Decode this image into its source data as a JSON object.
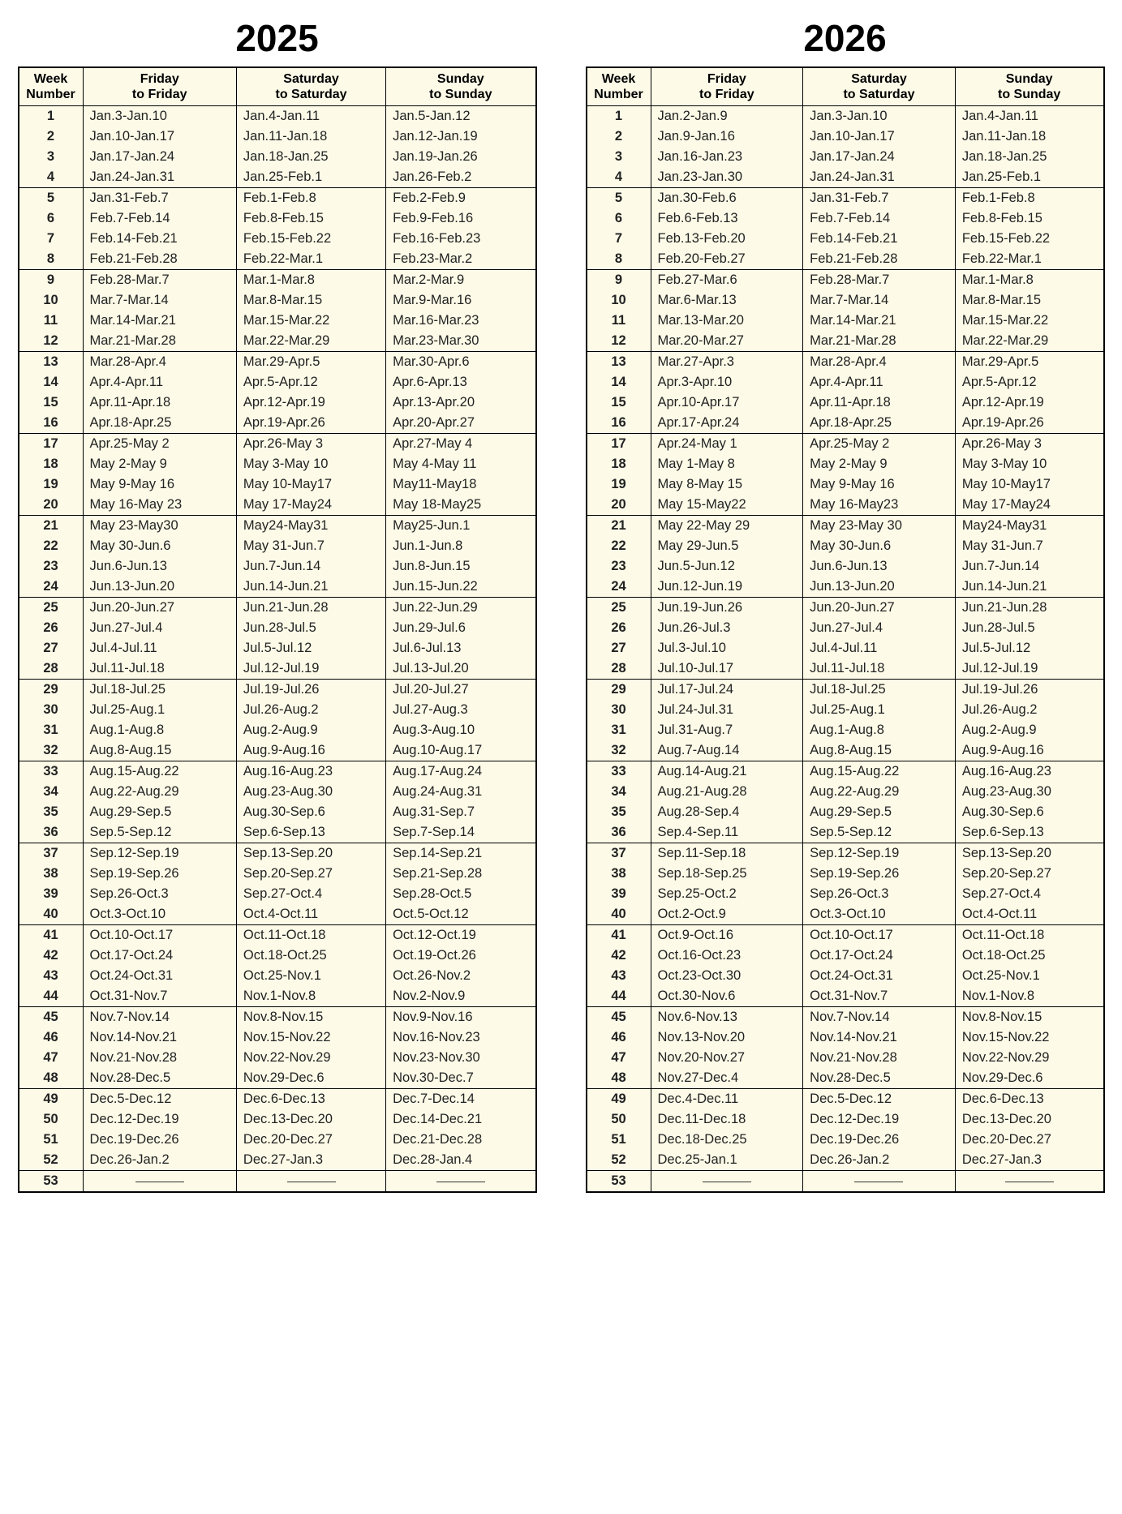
{
  "colors": {
    "page_bg": "#ffffff",
    "cell_bg": "#fdfbe8",
    "border": "#000000",
    "text": "#222222"
  },
  "typography": {
    "title_fontsize": 46,
    "header_fontsize": 16,
    "cell_fontsize": 16.5,
    "font_family": "Arial"
  },
  "layout": {
    "group_size": 4,
    "total_rows": 53
  },
  "headers": {
    "week": "Week\nNumber",
    "fri": "Friday\nto Friday",
    "sat": "Saturday\nto Saturday",
    "sun": "Sunday\nto Sunday"
  },
  "tables": [
    {
      "year": "2025",
      "rows": [
        {
          "w": "1",
          "f": "Jan.3-Jan.10",
          "sa": "Jan.4-Jan.11",
          "su": "Jan.5-Jan.12"
        },
        {
          "w": "2",
          "f": "Jan.10-Jan.17",
          "sa": "Jan.11-Jan.18",
          "su": "Jan.12-Jan.19"
        },
        {
          "w": "3",
          "f": "Jan.17-Jan.24",
          "sa": "Jan.18-Jan.25",
          "su": "Jan.19-Jan.26"
        },
        {
          "w": "4",
          "f": "Jan.24-Jan.31",
          "sa": "Jan.25-Feb.1",
          "su": "Jan.26-Feb.2"
        },
        {
          "w": "5",
          "f": "Jan.31-Feb.7",
          "sa": "Feb.1-Feb.8",
          "su": "Feb.2-Feb.9"
        },
        {
          "w": "6",
          "f": "Feb.7-Feb.14",
          "sa": "Feb.8-Feb.15",
          "su": "Feb.9-Feb.16"
        },
        {
          "w": "7",
          "f": "Feb.14-Feb.21",
          "sa": "Feb.15-Feb.22",
          "su": "Feb.16-Feb.23"
        },
        {
          "w": "8",
          "f": "Feb.21-Feb.28",
          "sa": "Feb.22-Mar.1",
          "su": "Feb.23-Mar.2"
        },
        {
          "w": "9",
          "f": "Feb.28-Mar.7",
          "sa": "Mar.1-Mar.8",
          "su": "Mar.2-Mar.9"
        },
        {
          "w": "10",
          "f": "Mar.7-Mar.14",
          "sa": "Mar.8-Mar.15",
          "su": "Mar.9-Mar.16"
        },
        {
          "w": "11",
          "f": "Mar.14-Mar.21",
          "sa": "Mar.15-Mar.22",
          "su": "Mar.16-Mar.23"
        },
        {
          "w": "12",
          "f": "Mar.21-Mar.28",
          "sa": "Mar.22-Mar.29",
          "su": "Mar.23-Mar.30"
        },
        {
          "w": "13",
          "f": "Mar.28-Apr.4",
          "sa": "Mar.29-Apr.5",
          "su": "Mar.30-Apr.6"
        },
        {
          "w": "14",
          "f": "Apr.4-Apr.11",
          "sa": "Apr.5-Apr.12",
          "su": "Apr.6-Apr.13"
        },
        {
          "w": "15",
          "f": "Apr.11-Apr.18",
          "sa": "Apr.12-Apr.19",
          "su": "Apr.13-Apr.20"
        },
        {
          "w": "16",
          "f": "Apr.18-Apr.25",
          "sa": "Apr.19-Apr.26",
          "su": "Apr.20-Apr.27"
        },
        {
          "w": "17",
          "f": "Apr.25-May 2",
          "sa": "Apr.26-May 3",
          "su": "Apr.27-May 4"
        },
        {
          "w": "18",
          "f": "May 2-May 9",
          "sa": "May 3-May 10",
          "su": "May 4-May 11"
        },
        {
          "w": "19",
          "f": "May 9-May 16",
          "sa": "May 10-May17",
          "su": "May11-May18"
        },
        {
          "w": "20",
          "f": "May 16-May 23",
          "sa": "May 17-May24",
          "su": "May 18-May25"
        },
        {
          "w": "21",
          "f": "May 23-May30",
          "sa": "May24-May31",
          "su": "May25-Jun.1"
        },
        {
          "w": "22",
          "f": "May 30-Jun.6",
          "sa": "May 31-Jun.7",
          "su": "Jun.1-Jun.8"
        },
        {
          "w": "23",
          "f": "Jun.6-Jun.13",
          "sa": "Jun.7-Jun.14",
          "su": "Jun.8-Jun.15"
        },
        {
          "w": "24",
          "f": "Jun.13-Jun.20",
          "sa": "Jun.14-Jun.21",
          "su": "Jun.15-Jun.22"
        },
        {
          "w": "25",
          "f": "Jun.20-Jun.27",
          "sa": "Jun.21-Jun.28",
          "su": "Jun.22-Jun.29"
        },
        {
          "w": "26",
          "f": "Jun.27-Jul.4",
          "sa": "Jun.28-Jul.5",
          "su": "Jun.29-Jul.6"
        },
        {
          "w": "27",
          "f": "Jul.4-Jul.11",
          "sa": "Jul.5-Jul.12",
          "su": "Jul.6-Jul.13"
        },
        {
          "w": "28",
          "f": "Jul.11-Jul.18",
          "sa": "Jul.12-Jul.19",
          "su": "Jul.13-Jul.20"
        },
        {
          "w": "29",
          "f": "Jul.18-Jul.25",
          "sa": "Jul.19-Jul.26",
          "su": "Jul.20-Jul.27"
        },
        {
          "w": "30",
          "f": "Jul.25-Aug.1",
          "sa": "Jul.26-Aug.2",
          "su": "Jul.27-Aug.3"
        },
        {
          "w": "31",
          "f": "Aug.1-Aug.8",
          "sa": "Aug.2-Aug.9",
          "su": "Aug.3-Aug.10"
        },
        {
          "w": "32",
          "f": "Aug.8-Aug.15",
          "sa": "Aug.9-Aug.16",
          "su": "Aug.10-Aug.17"
        },
        {
          "w": "33",
          "f": "Aug.15-Aug.22",
          "sa": "Aug.16-Aug.23",
          "su": "Aug.17-Aug.24"
        },
        {
          "w": "34",
          "f": "Aug.22-Aug.29",
          "sa": "Aug.23-Aug.30",
          "su": "Aug.24-Aug.31"
        },
        {
          "w": "35",
          "f": "Aug.29-Sep.5",
          "sa": "Aug.30-Sep.6",
          "su": "Aug.31-Sep.7"
        },
        {
          "w": "36",
          "f": "Sep.5-Sep.12",
          "sa": "Sep.6-Sep.13",
          "su": "Sep.7-Sep.14"
        },
        {
          "w": "37",
          "f": "Sep.12-Sep.19",
          "sa": "Sep.13-Sep.20",
          "su": "Sep.14-Sep.21"
        },
        {
          "w": "38",
          "f": "Sep.19-Sep.26",
          "sa": "Sep.20-Sep.27",
          "su": "Sep.21-Sep.28"
        },
        {
          "w": "39",
          "f": "Sep.26-Oct.3",
          "sa": "Sep.27-Oct.4",
          "su": "Sep.28-Oct.5"
        },
        {
          "w": "40",
          "f": "Oct.3-Oct.10",
          "sa": "Oct.4-Oct.11",
          "su": "Oct.5-Oct.12"
        },
        {
          "w": "41",
          "f": "Oct.10-Oct.17",
          "sa": "Oct.11-Oct.18",
          "su": "Oct.12-Oct.19"
        },
        {
          "w": "42",
          "f": "Oct.17-Oct.24",
          "sa": "Oct.18-Oct.25",
          "su": "Oct.19-Oct.26"
        },
        {
          "w": "43",
          "f": "Oct.24-Oct.31",
          "sa": "Oct.25-Nov.1",
          "su": "Oct.26-Nov.2"
        },
        {
          "w": "44",
          "f": "Oct.31-Nov.7",
          "sa": "Nov.1-Nov.8",
          "su": "Nov.2-Nov.9"
        },
        {
          "w": "45",
          "f": "Nov.7-Nov.14",
          "sa": "Nov.8-Nov.15",
          "su": "Nov.9-Nov.16"
        },
        {
          "w": "46",
          "f": "Nov.14-Nov.21",
          "sa": "Nov.15-Nov.22",
          "su": "Nov.16-Nov.23"
        },
        {
          "w": "47",
          "f": "Nov.21-Nov.28",
          "sa": "Nov.22-Nov.29",
          "su": "Nov.23-Nov.30"
        },
        {
          "w": "48",
          "f": "Nov.28-Dec.5",
          "sa": "Nov.29-Dec.6",
          "su": "Nov.30-Dec.7"
        },
        {
          "w": "49",
          "f": "Dec.5-Dec.12",
          "sa": "Dec.6-Dec.13",
          "su": "Dec.7-Dec.14"
        },
        {
          "w": "50",
          "f": "Dec.12-Dec.19",
          "sa": "Dec.13-Dec.20",
          "su": "Dec.14-Dec.21"
        },
        {
          "w": "51",
          "f": "Dec.19-Dec.26",
          "sa": "Dec.20-Dec.27",
          "su": "Dec.21-Dec.28"
        },
        {
          "w": "52",
          "f": "Dec.26-Jan.2",
          "sa": "Dec.27-Jan.3",
          "su": "Dec.28-Jan.4"
        },
        {
          "w": "53",
          "f": "—",
          "sa": "—",
          "su": "—"
        }
      ]
    },
    {
      "year": "2026",
      "rows": [
        {
          "w": "1",
          "f": "Jan.2-Jan.9",
          "sa": "Jan.3-Jan.10",
          "su": "Jan.4-Jan.11"
        },
        {
          "w": "2",
          "f": "Jan.9-Jan.16",
          "sa": "Jan.10-Jan.17",
          "su": "Jan.11-Jan.18"
        },
        {
          "w": "3",
          "f": "Jan.16-Jan.23",
          "sa": "Jan.17-Jan.24",
          "su": "Jan.18-Jan.25"
        },
        {
          "w": "4",
          "f": "Jan.23-Jan.30",
          "sa": "Jan.24-Jan.31",
          "su": "Jan.25-Feb.1"
        },
        {
          "w": "5",
          "f": "Jan.30-Feb.6",
          "sa": "Jan.31-Feb.7",
          "su": "Feb.1-Feb.8"
        },
        {
          "w": "6",
          "f": "Feb.6-Feb.13",
          "sa": "Feb.7-Feb.14",
          "su": "Feb.8-Feb.15"
        },
        {
          "w": "7",
          "f": "Feb.13-Feb.20",
          "sa": "Feb.14-Feb.21",
          "su": "Feb.15-Feb.22"
        },
        {
          "w": "8",
          "f": "Feb.20-Feb.27",
          "sa": "Feb.21-Feb.28",
          "su": "Feb.22-Mar.1"
        },
        {
          "w": "9",
          "f": "Feb.27-Mar.6",
          "sa": "Feb.28-Mar.7",
          "su": "Mar.1-Mar.8"
        },
        {
          "w": "10",
          "f": "Mar.6-Mar.13",
          "sa": "Mar.7-Mar.14",
          "su": "Mar.8-Mar.15"
        },
        {
          "w": "11",
          "f": "Mar.13-Mar.20",
          "sa": "Mar.14-Mar.21",
          "su": "Mar.15-Mar.22"
        },
        {
          "w": "12",
          "f": "Mar.20-Mar.27",
          "sa": "Mar.21-Mar.28",
          "su": "Mar.22-Mar.29"
        },
        {
          "w": "13",
          "f": "Mar.27-Apr.3",
          "sa": "Mar.28-Apr.4",
          "su": "Mar.29-Apr.5"
        },
        {
          "w": "14",
          "f": "Apr.3-Apr.10",
          "sa": "Apr.4-Apr.11",
          "su": "Apr.5-Apr.12"
        },
        {
          "w": "15",
          "f": "Apr.10-Apr.17",
          "sa": "Apr.11-Apr.18",
          "su": "Apr.12-Apr.19"
        },
        {
          "w": "16",
          "f": "Apr.17-Apr.24",
          "sa": "Apr.18-Apr.25",
          "su": "Apr.19-Apr.26"
        },
        {
          "w": "17",
          "f": "Apr.24-May 1",
          "sa": "Apr.25-May 2",
          "su": "Apr.26-May 3"
        },
        {
          "w": "18",
          "f": "May 1-May 8",
          "sa": "May 2-May 9",
          "su": "May 3-May 10"
        },
        {
          "w": "19",
          "f": "May 8-May 15",
          "sa": "May 9-May 16",
          "su": "May 10-May17"
        },
        {
          "w": "20",
          "f": "May 15-May22",
          "sa": "May 16-May23",
          "su": "May 17-May24"
        },
        {
          "w": "21",
          "f": "May 22-May 29",
          "sa": "May 23-May 30",
          "su": "May24-May31"
        },
        {
          "w": "22",
          "f": "May 29-Jun.5",
          "sa": "May 30-Jun.6",
          "su": "May 31-Jun.7"
        },
        {
          "w": "23",
          "f": "Jun.5-Jun.12",
          "sa": "Jun.6-Jun.13",
          "su": "Jun.7-Jun.14"
        },
        {
          "w": "24",
          "f": "Jun.12-Jun.19",
          "sa": "Jun.13-Jun.20",
          "su": "Jun.14-Jun.21"
        },
        {
          "w": "25",
          "f": "Jun.19-Jun.26",
          "sa": "Jun.20-Jun.27",
          "su": "Jun.21-Jun.28"
        },
        {
          "w": "26",
          "f": "Jun.26-Jul.3",
          "sa": "Jun.27-Jul.4",
          "su": "Jun.28-Jul.5"
        },
        {
          "w": "27",
          "f": "Jul.3-Jul.10",
          "sa": "Jul.4-Jul.11",
          "su": "Jul.5-Jul.12"
        },
        {
          "w": "28",
          "f": "Jul.10-Jul.17",
          "sa": "Jul.11-Jul.18",
          "su": "Jul.12-Jul.19"
        },
        {
          "w": "29",
          "f": "Jul.17-Jul.24",
          "sa": "Jul.18-Jul.25",
          "su": "Jul.19-Jul.26"
        },
        {
          "w": "30",
          "f": "Jul.24-Jul.31",
          "sa": "Jul.25-Aug.1",
          "su": "Jul.26-Aug.2"
        },
        {
          "w": "31",
          "f": "Jul.31-Aug.7",
          "sa": "Aug.1-Aug.8",
          "su": "Aug.2-Aug.9"
        },
        {
          "w": "32",
          "f": "Aug.7-Aug.14",
          "sa": "Aug.8-Aug.15",
          "su": "Aug.9-Aug.16"
        },
        {
          "w": "33",
          "f": "Aug.14-Aug.21",
          "sa": "Aug.15-Aug.22",
          "su": "Aug.16-Aug.23"
        },
        {
          "w": "34",
          "f": "Aug.21-Aug.28",
          "sa": "Aug.22-Aug.29",
          "su": "Aug.23-Aug.30"
        },
        {
          "w": "35",
          "f": "Aug.28-Sep.4",
          "sa": "Aug.29-Sep.5",
          "su": "Aug.30-Sep.6"
        },
        {
          "w": "36",
          "f": "Sep.4-Sep.11",
          "sa": "Sep.5-Sep.12",
          "su": "Sep.6-Sep.13"
        },
        {
          "w": "37",
          "f": "Sep.11-Sep.18",
          "sa": "Sep.12-Sep.19",
          "su": "Sep.13-Sep.20"
        },
        {
          "w": "38",
          "f": "Sep.18-Sep.25",
          "sa": "Sep.19-Sep.26",
          "su": "Sep.20-Sep.27"
        },
        {
          "w": "39",
          "f": "Sep.25-Oct.2",
          "sa": "Sep.26-Oct.3",
          "su": "Sep.27-Oct.4"
        },
        {
          "w": "40",
          "f": "Oct.2-Oct.9",
          "sa": "Oct.3-Oct.10",
          "su": "Oct.4-Oct.11"
        },
        {
          "w": "41",
          "f": "Oct.9-Oct.16",
          "sa": "Oct.10-Oct.17",
          "su": "Oct.11-Oct.18"
        },
        {
          "w": "42",
          "f": "Oct.16-Oct.23",
          "sa": "Oct.17-Oct.24",
          "su": "Oct.18-Oct.25"
        },
        {
          "w": "43",
          "f": "Oct.23-Oct.30",
          "sa": "Oct.24-Oct.31",
          "su": "Oct.25-Nov.1"
        },
        {
          "w": "44",
          "f": "Oct.30-Nov.6",
          "sa": "Oct.31-Nov.7",
          "su": "Nov.1-Nov.8"
        },
        {
          "w": "45",
          "f": "Nov.6-Nov.13",
          "sa": "Nov.7-Nov.14",
          "su": "Nov.8-Nov.15"
        },
        {
          "w": "46",
          "f": "Nov.13-Nov.20",
          "sa": "Nov.14-Nov.21",
          "su": "Nov.15-Nov.22"
        },
        {
          "w": "47",
          "f": "Nov.20-Nov.27",
          "sa": "Nov.21-Nov.28",
          "su": "Nov.22-Nov.29"
        },
        {
          "w": "48",
          "f": "Nov.27-Dec.4",
          "sa": "Nov.28-Dec.5",
          "su": "Nov.29-Dec.6"
        },
        {
          "w": "49",
          "f": "Dec.4-Dec.11",
          "sa": "Dec.5-Dec.12",
          "su": "Dec.6-Dec.13"
        },
        {
          "w": "50",
          "f": "Dec.11-Dec.18",
          "sa": "Dec.12-Dec.19",
          "su": "Dec.13-Dec.20"
        },
        {
          "w": "51",
          "f": "Dec.18-Dec.25",
          "sa": "Dec.19-Dec.26",
          "su": "Dec.20-Dec.27"
        },
        {
          "w": "52",
          "f": "Dec.25-Jan.1",
          "sa": "Dec.26-Jan.2",
          "su": "Dec.27-Jan.3"
        },
        {
          "w": "53",
          "f": "—",
          "sa": "—",
          "su": "—"
        }
      ]
    }
  ]
}
